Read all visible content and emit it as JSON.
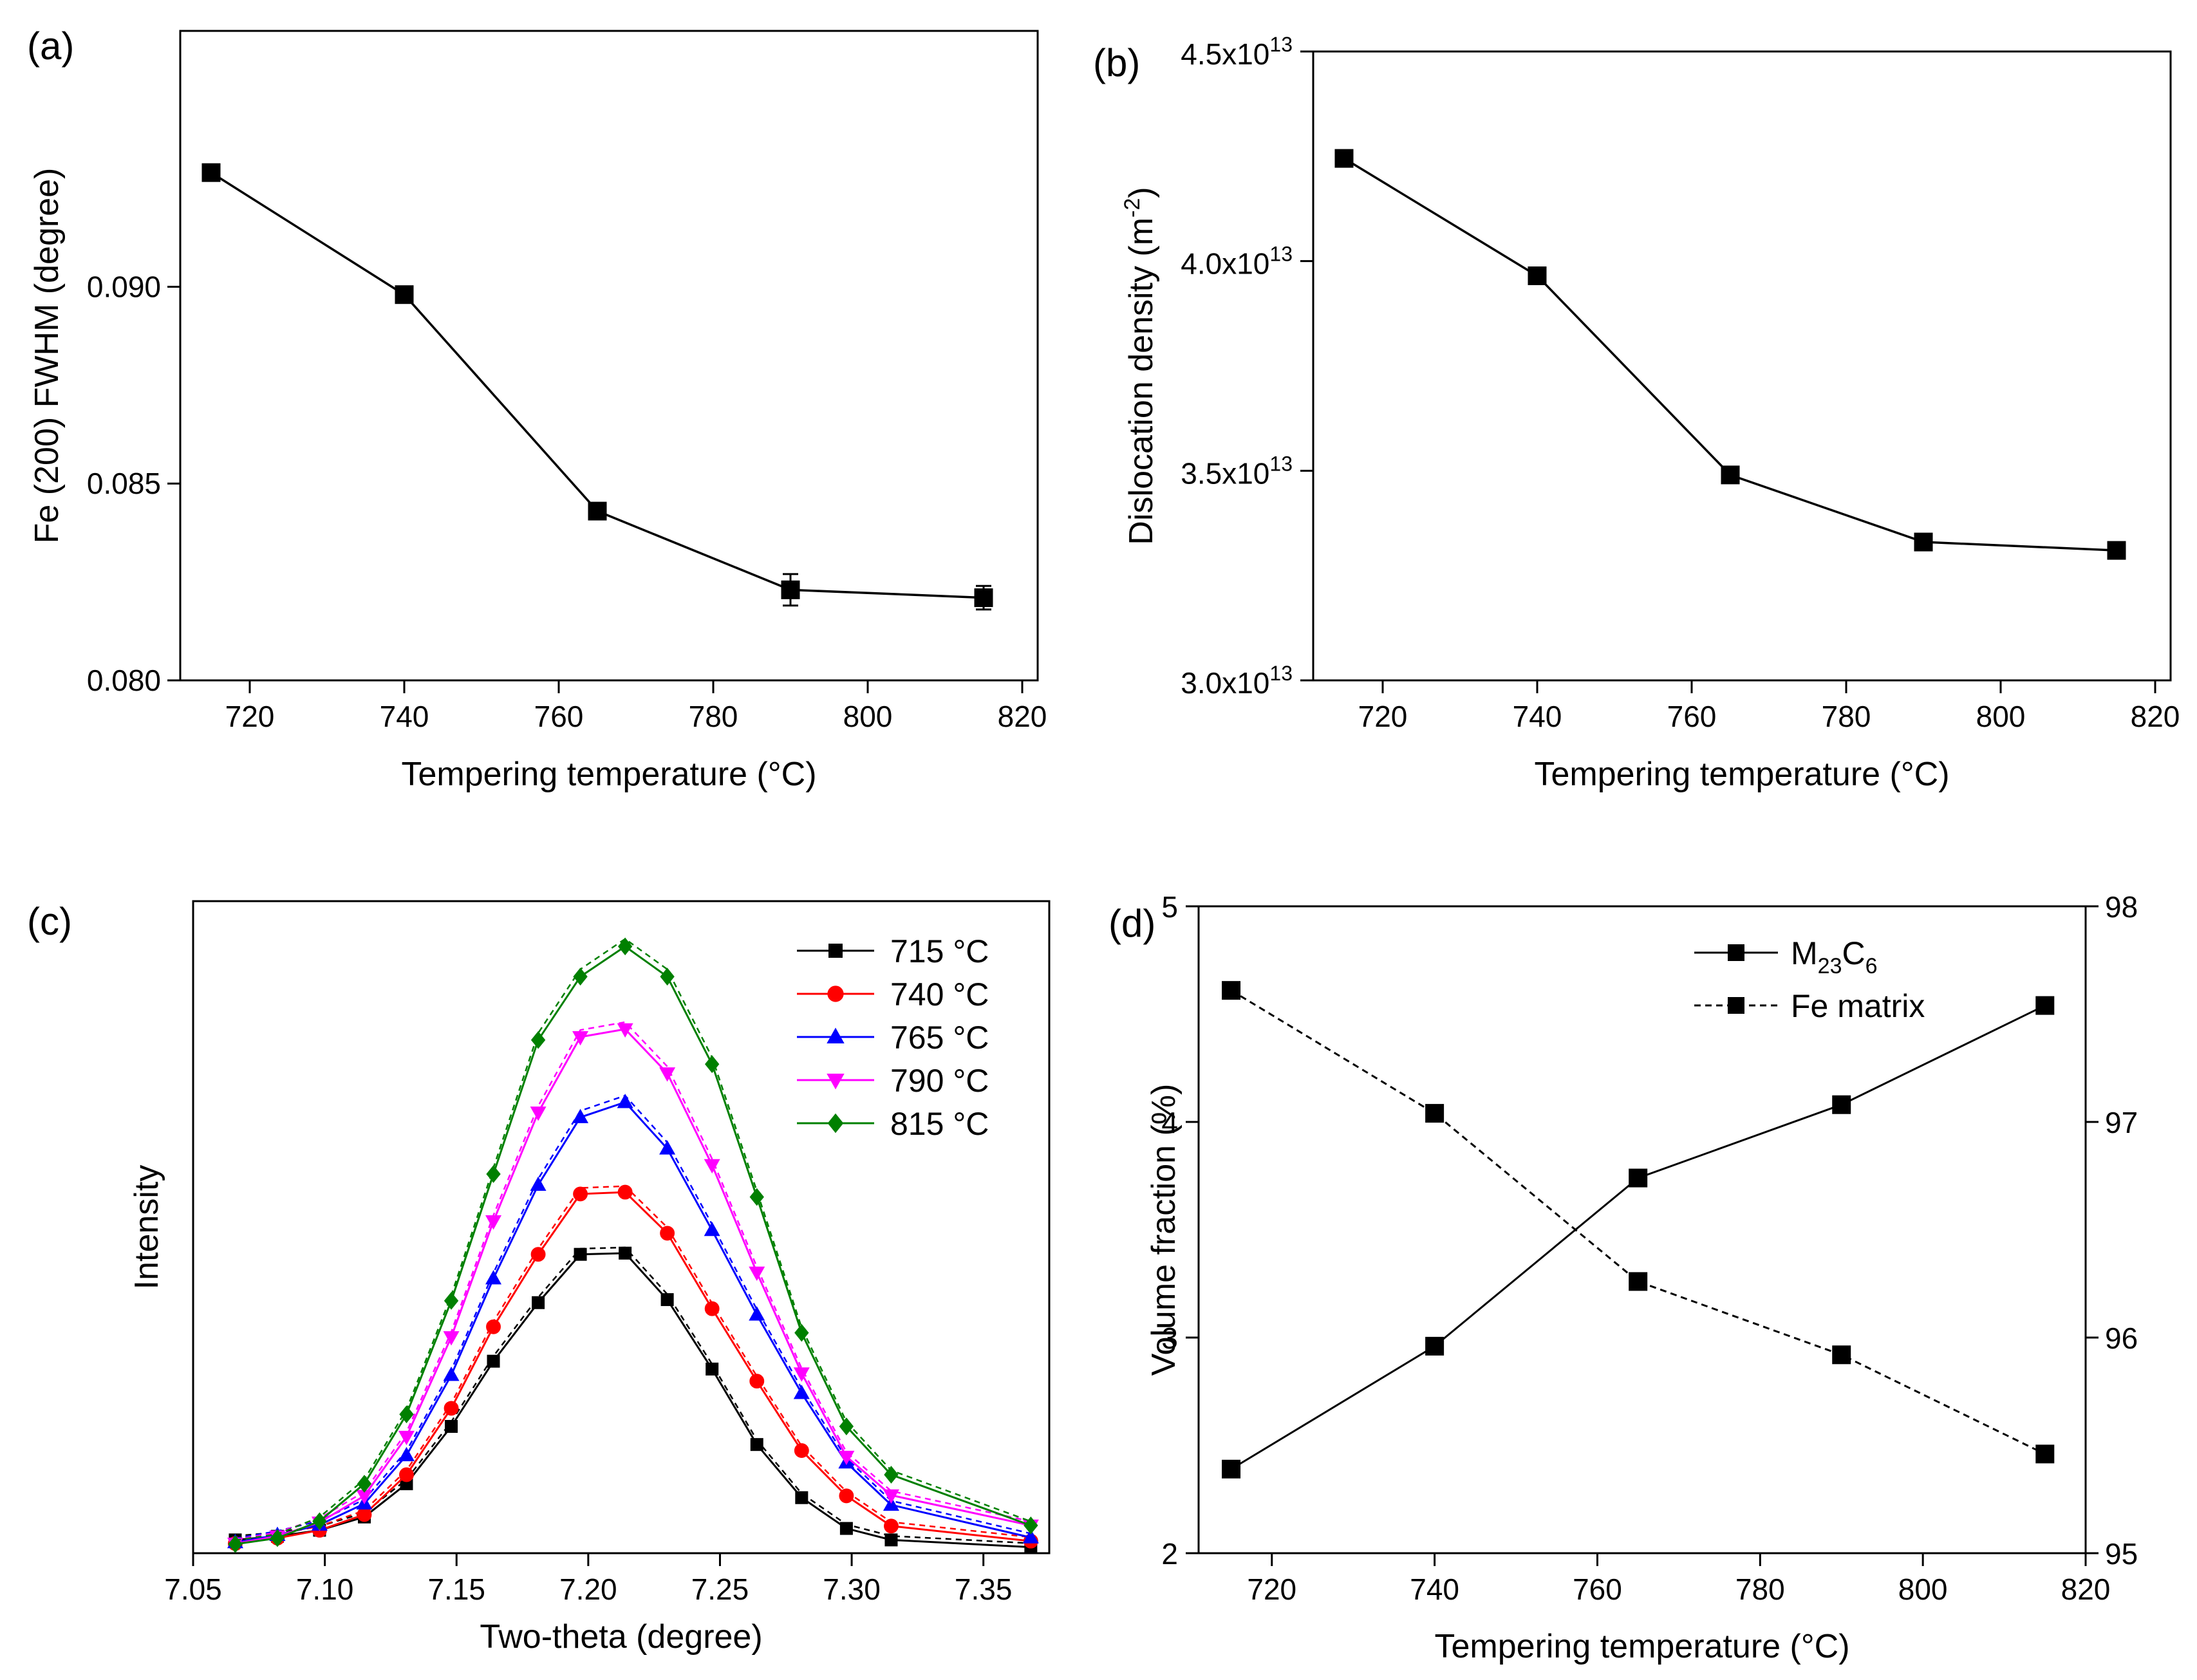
{
  "chart_data": [
    {
      "panel": "(a)",
      "type": "line",
      "xlabel": "Tempering temperature (°C)",
      "ylabel": "Fe (200) FWHM (degree)",
      "xlim": [
        711,
        822
      ],
      "ylim": [
        0.08,
        0.0965
      ],
      "xticks": [
        720,
        740,
        760,
        780,
        800,
        820
      ],
      "yticks": [
        0.08,
        0.085,
        0.09
      ],
      "ytick_labels": [
        "0.080",
        "0.085",
        "0.090"
      ],
      "x": [
        715,
        740,
        765,
        790,
        815
      ],
      "values": [
        0.0929,
        0.0898,
        0.0843,
        0.0823,
        0.0821
      ],
      "errors": [
        0.0001,
        0.0002,
        0.0001,
        0.0004,
        0.0003
      ],
      "marker": "square",
      "grid": false
    },
    {
      "panel": "(b)",
      "type": "line",
      "xlabel": "Tempering temperature (°C)",
      "ylabel": "Dislocation density (m",
      "ylabel_sup": "-2",
      "ylabel_end": ")",
      "xlim": [
        711,
        822
      ],
      "ylim": [
        30000000000000.0,
        45000000000000.0
      ],
      "xticks": [
        720,
        740,
        760,
        780,
        800,
        820
      ],
      "yticks": [
        30000000000000.0,
        35000000000000.0,
        40000000000000.0,
        45000000000000.0
      ],
      "ytick_labels": [
        "3.0x10",
        "3.5x10",
        "4.0x10",
        "4.5x10"
      ],
      "ytick_exp": "13",
      "x": [
        715,
        740,
        765,
        790,
        815
      ],
      "values": [
        42450000000000.0,
        39650000000000.0,
        34900000000000.0,
        33300000000000.0,
        33100000000000.0
      ],
      "marker": "square",
      "grid": false
    },
    {
      "panel": "(c)",
      "type": "line",
      "xlabel": "Two-theta (degree)",
      "ylabel": "Intensity",
      "xlim": [
        7.05,
        7.375
      ],
      "ylim": [
        0,
        1.08
      ],
      "xticks": [
        7.05,
        7.1,
        7.15,
        7.2,
        7.25,
        7.3,
        7.35
      ],
      "xtick_labels": [
        "7.05",
        "7.10",
        "7.15",
        "7.20",
        "7.25",
        "7.30",
        "7.35"
      ],
      "legend_position": "top-right",
      "x": [
        7.066,
        7.082,
        7.098,
        7.115,
        7.131,
        7.148,
        7.164,
        7.181,
        7.197,
        7.214,
        7.23,
        7.247,
        7.264,
        7.281,
        7.298,
        7.315,
        7.368
      ],
      "series": [
        {
          "name": "715 °C",
          "color": "#000000",
          "marker": "square",
          "values": [
            0.022,
            0.028,
            0.038,
            0.06,
            0.115,
            0.21,
            0.318,
            0.415,
            0.495,
            0.497,
            0.42,
            0.305,
            0.18,
            0.092,
            0.041,
            0.022,
            0.01
          ]
        },
        {
          "name": "740 °C",
          "color": "#ff0000",
          "marker": "circle",
          "values": [
            0.016,
            0.025,
            0.038,
            0.064,
            0.13,
            0.24,
            0.375,
            0.495,
            0.595,
            0.598,
            0.53,
            0.405,
            0.285,
            0.17,
            0.095,
            0.045,
            0.02
          ]
        },
        {
          "name": "765 °C",
          "color": "#0000ff",
          "marker": "triangle-up",
          "values": [
            0.018,
            0.03,
            0.047,
            0.082,
            0.162,
            0.295,
            0.455,
            0.61,
            0.722,
            0.747,
            0.67,
            0.535,
            0.395,
            0.265,
            0.15,
            0.08,
            0.026
          ]
        },
        {
          "name": "790 °C",
          "color": "#ff00ff",
          "marker": "triangle-down",
          "values": [
            0.016,
            0.028,
            0.051,
            0.095,
            0.193,
            0.358,
            0.55,
            0.73,
            0.855,
            0.868,
            0.795,
            0.643,
            0.465,
            0.298,
            0.16,
            0.096,
            0.046
          ]
        },
        {
          "name": "815 °C",
          "color": "#008000",
          "marker": "diamond",
          "values": [
            0.015,
            0.025,
            0.053,
            0.115,
            0.23,
            0.418,
            0.628,
            0.85,
            0.955,
            1.005,
            0.955,
            0.81,
            0.59,
            0.365,
            0.21,
            0.13,
            0.046
          ]
        }
      ],
      "grid": false
    },
    {
      "panel": "(d)",
      "type": "line",
      "xlabel": "Tempering temperature (°C)",
      "ylabel": "Volume fraction (%)",
      "xlim": [
        711,
        820
      ],
      "ylim": [
        2,
        5
      ],
      "ylim_right": [
        95,
        98
      ],
      "xticks": [
        720,
        740,
        760,
        780,
        800,
        820
      ],
      "yticks": [
        2,
        3,
        4,
        5
      ],
      "yticks_right": [
        95,
        96,
        97,
        98
      ],
      "legend_position": "top-right",
      "x": [
        715,
        740,
        765,
        790,
        815
      ],
      "series": [
        {
          "name": "M",
          "name_sub1": "23",
          "name_mid": "C",
          "name_sub2": "6",
          "axis": "left",
          "line_style": "solid",
          "values": [
            2.39,
            2.96,
            3.74,
            4.08,
            4.54
          ]
        },
        {
          "name": "Fe matrix",
          "axis": "right",
          "line_style": "dashed",
          "values": [
            97.61,
            97.04,
            96.26,
            95.92,
            95.46
          ]
        }
      ],
      "grid": false
    }
  ]
}
